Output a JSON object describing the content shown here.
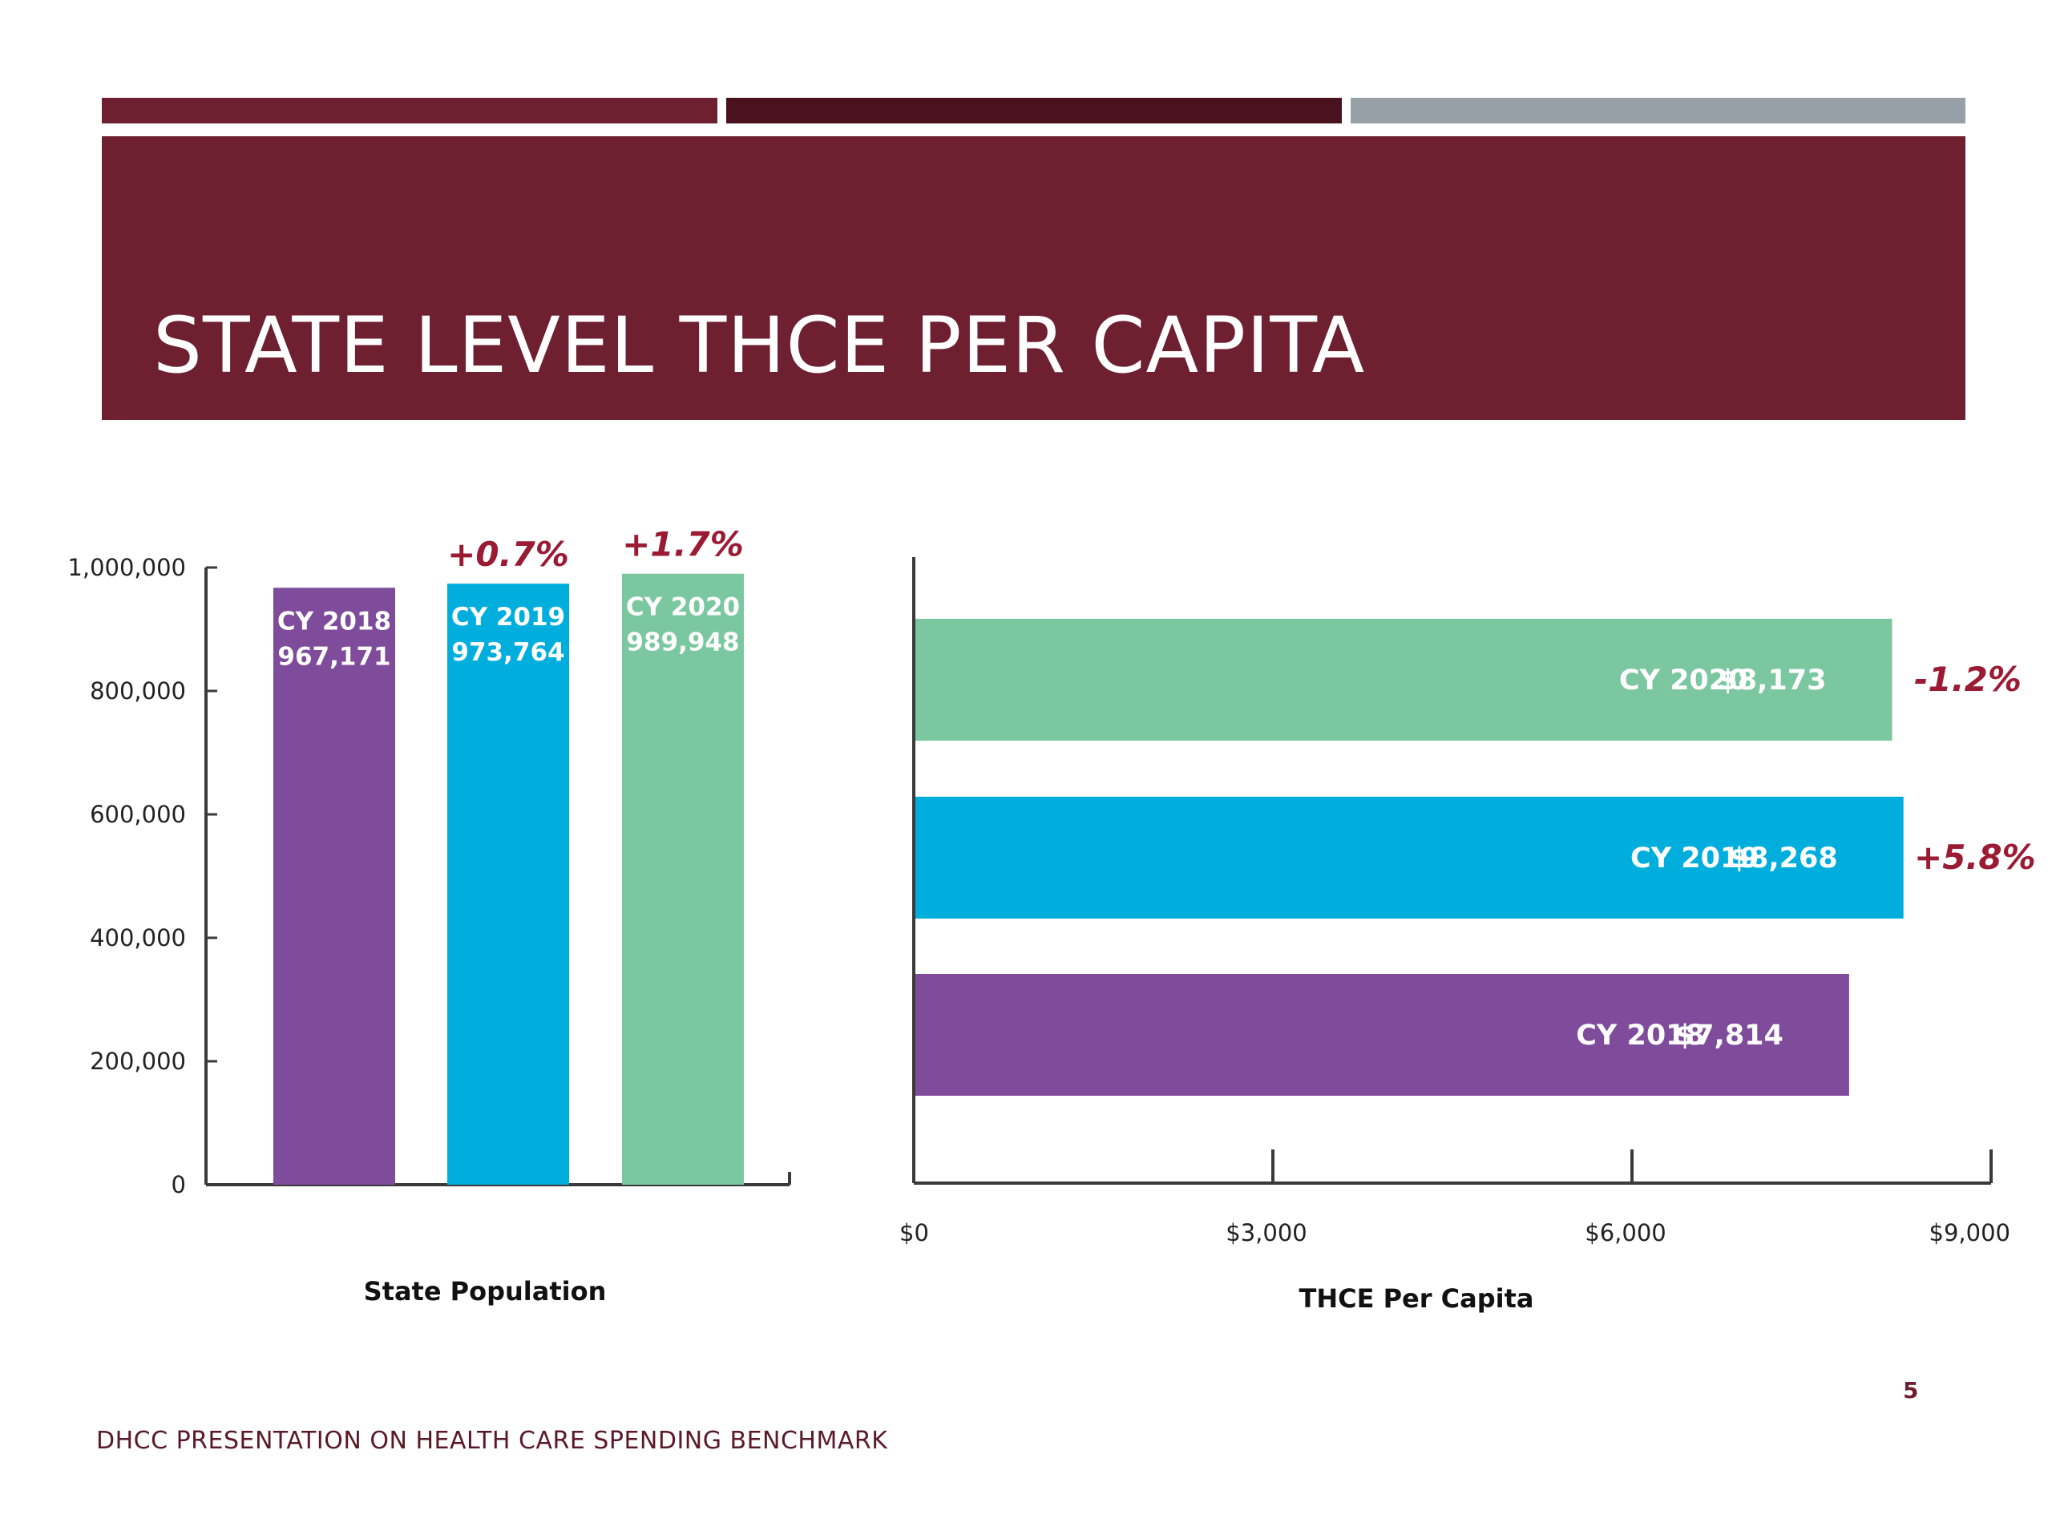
{
  "slide": {
    "title": "STATE LEVEL THCE PER CAPITA",
    "footer": "DHCC PRESENTATION ON HEALTH CARE SPENDING BENCHMARK",
    "page_number": "5",
    "colors": {
      "banner": "#6e1f30",
      "banner_dark": "#4a121f",
      "banner_gray": "#98a0a7",
      "change": "#9b1b34"
    }
  },
  "chart_data": [
    {
      "type": "bar",
      "xlabel": "State Population",
      "ylabel": "",
      "ylim": [
        0,
        1000000
      ],
      "yticks": [
        {
          "value": 0,
          "label": "0"
        },
        {
          "value": 200000,
          "label": "200,000"
        },
        {
          "value": 400000,
          "label": "400,000"
        },
        {
          "value": 600000,
          "label": "600,000"
        },
        {
          "value": 800000,
          "label": "800,000"
        },
        {
          "value": 1000000,
          "label": "1,000,000"
        }
      ],
      "bars": [
        {
          "category": "CY 2018",
          "value": 967171,
          "value_label": "967,171",
          "color": "#7f4b9b",
          "change": ""
        },
        {
          "category": "CY 2019",
          "value": 973764,
          "value_label": "973,764",
          "color": "#00aede",
          "change": "+0.7%"
        },
        {
          "category": "CY 2020",
          "value": 989948,
          "value_label": "989,948",
          "color": "#7bc79f",
          "change": "+1.7%"
        }
      ]
    },
    {
      "type": "bar",
      "orientation": "horizontal",
      "xlabel": "THCE Per Capita",
      "xlim": [
        0,
        9000
      ],
      "xticks": [
        {
          "value": 0,
          "label": "$0"
        },
        {
          "value": 3000,
          "label": "$3,000"
        },
        {
          "value": 6000,
          "label": "$6,000"
        },
        {
          "value": 9000,
          "label": "$9,000"
        }
      ],
      "bars": [
        {
          "category": "CY 2020",
          "value": 8173,
          "value_label": "$8,173",
          "color": "#7bc79f",
          "change": "-1.2%"
        },
        {
          "category": "CY 2019",
          "value": 8268,
          "value_label": "$8,268",
          "color": "#00aede",
          "change": "+5.8%"
        },
        {
          "category": "CY 2018",
          "value": 7814,
          "value_label": "$7,814",
          "color": "#7f4b9b",
          "change": ""
        }
      ]
    }
  ]
}
